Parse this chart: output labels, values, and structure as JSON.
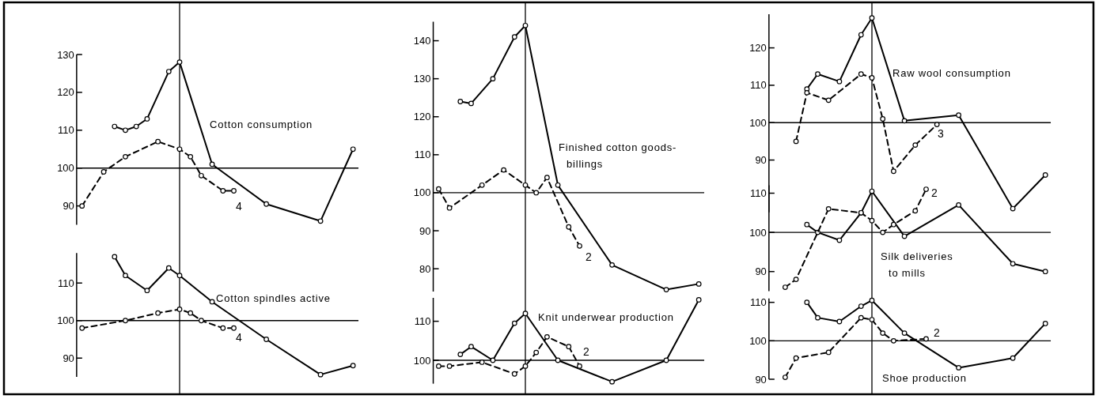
{
  "chart_data": [
    {
      "type": "line",
      "title": "Cotton consumption",
      "categories": [
        null,
        null,
        null,
        null,
        null,
        null,
        null,
        null,
        null,
        null,
        null,
        null,
        null,
        null,
        null,
        null,
        null,
        null,
        null,
        null,
        null,
        null,
        null,
        null,
        null,
        null
      ],
      "ylim": [
        85,
        130
      ],
      "yticks": [
        90,
        100,
        110,
        120,
        130
      ],
      "tick_labels": "y",
      "grid": false,
      "marker": "circle",
      "series": [
        {
          "color": "#000000",
          "line_style": "solid",
          "values": [
            null,
            null,
            null,
            111,
            110,
            111,
            113,
            null,
            125.5,
            128,
            null,
            null,
            101,
            null,
            null,
            null,
            null,
            90.5,
            null,
            null,
            null,
            null,
            86,
            null,
            null,
            105
          ]
        },
        {
          "color": "#000000",
          "line_style": "dashed",
          "values": [
            90,
            null,
            99,
            null,
            103,
            null,
            null,
            107,
            null,
            105,
            103,
            98,
            null,
            94,
            94,
            null,
            null,
            null,
            null,
            null,
            null,
            null,
            null,
            null,
            null,
            null
          ]
        }
      ],
      "ref_lines": [
        {
          "axis": "y",
          "value": 100
        }
      ],
      "annotations": [
        "4"
      ]
    },
    {
      "type": "line",
      "title": "Finished cotton goods-billings",
      "categories": [
        null,
        null,
        null,
        null,
        null,
        null,
        null,
        null,
        null,
        null,
        null,
        null,
        null,
        null,
        null,
        null,
        null,
        null,
        null,
        null,
        null,
        null,
        null,
        null,
        null
      ],
      "ylim": [
        74,
        145
      ],
      "yticks": [
        80,
        90,
        100,
        110,
        120,
        130,
        140
      ],
      "tick_labels": "y",
      "grid": false,
      "marker": "circle",
      "series": [
        {
          "color": "#000000",
          "line_style": "solid",
          "values": [
            null,
            null,
            124,
            123.5,
            null,
            130,
            null,
            141,
            144,
            null,
            null,
            102,
            null,
            null,
            null,
            null,
            81,
            null,
            null,
            null,
            null,
            74.5,
            null,
            null,
            76
          ]
        },
        {
          "color": "#000000",
          "line_style": "dashed",
          "values": [
            101,
            96,
            null,
            null,
            102,
            null,
            106,
            null,
            102,
            100,
            104,
            null,
            91,
            86,
            null,
            null,
            null,
            null,
            null,
            null,
            null,
            null,
            null,
            null,
            null
          ]
        }
      ],
      "ref_lines": [
        {
          "axis": "y",
          "value": 100
        }
      ],
      "annotations": [
        "2"
      ]
    },
    {
      "type": "line",
      "title": "Raw wool consumption",
      "categories": [
        null,
        null,
        null,
        null,
        null,
        null,
        null,
        null,
        null,
        null,
        null,
        null,
        null,
        null,
        null,
        null,
        null,
        null,
        null,
        null,
        null,
        null,
        null,
        null,
        null,
        null
      ],
      "ylim": [
        76,
        129
      ],
      "yticks": [
        90,
        100,
        110,
        120
      ],
      "tick_labels": "y",
      "grid": false,
      "marker": "circle",
      "series": [
        {
          "color": "#000000",
          "line_style": "solid",
          "values": [
            null,
            null,
            null,
            109,
            113,
            null,
            111,
            null,
            123.5,
            128,
            null,
            null,
            100.5,
            null,
            null,
            null,
            null,
            102,
            null,
            null,
            null,
            null,
            77,
            null,
            null,
            86
          ]
        },
        {
          "color": "#000000",
          "line_style": "dashed",
          "values": [
            null,
            null,
            95,
            108,
            null,
            106,
            null,
            null,
            113,
            112,
            101,
            87,
            null,
            94,
            null,
            99.5,
            null,
            null,
            null,
            null,
            null,
            null,
            null,
            null,
            null,
            null
          ]
        }
      ],
      "ref_lines": [
        {
          "axis": "y",
          "value": 100
        }
      ],
      "annotations": [
        "3"
      ]
    },
    {
      "type": "line",
      "title": "Cotton spindles active",
      "categories": [
        null,
        null,
        null,
        null,
        null,
        null,
        null,
        null,
        null,
        null,
        null,
        null,
        null,
        null,
        null,
        null,
        null,
        null,
        null,
        null,
        null,
        null,
        null,
        null,
        null,
        null
      ],
      "ylim": [
        85,
        118
      ],
      "yticks": [
        90,
        100,
        110
      ],
      "tick_labels": "y",
      "grid": false,
      "marker": "circle",
      "series": [
        {
          "color": "#000000",
          "line_style": "solid",
          "values": [
            null,
            null,
            null,
            117,
            112,
            null,
            108,
            null,
            114,
            112,
            null,
            null,
            105,
            null,
            null,
            null,
            null,
            95,
            null,
            null,
            null,
            null,
            85.6,
            null,
            null,
            88
          ]
        },
        {
          "color": "#000000",
          "line_style": "dashed",
          "values": [
            98,
            null,
            null,
            null,
            100,
            null,
            null,
            102,
            null,
            103,
            102,
            100,
            null,
            98,
            98,
            null,
            null,
            null,
            null,
            null,
            null,
            null,
            null,
            null,
            null,
            null
          ]
        }
      ],
      "ref_lines": [
        {
          "axis": "y",
          "value": 100
        }
      ],
      "annotations": [
        "4"
      ]
    },
    {
      "type": "line",
      "title": "Knit underwear production",
      "categories": [
        null,
        null,
        null,
        null,
        null,
        null,
        null,
        null,
        null,
        null,
        null,
        null,
        null,
        null,
        null,
        null,
        null,
        null,
        null,
        null,
        null,
        null,
        null,
        null,
        null
      ],
      "ylim": [
        94,
        116
      ],
      "yticks": [
        100,
        110
      ],
      "tick_labels": "y",
      "grid": false,
      "marker": "circle",
      "series": [
        {
          "color": "#000000",
          "line_style": "solid",
          "values": [
            null,
            null,
            101.5,
            103.5,
            null,
            100,
            null,
            109.5,
            112,
            null,
            null,
            100,
            null,
            null,
            null,
            null,
            94.5,
            null,
            null,
            null,
            null,
            100,
            null,
            null,
            115.5
          ]
        },
        {
          "color": "#000000",
          "line_style": "dashed",
          "values": [
            98.5,
            98.5,
            null,
            null,
            99.5,
            null,
            null,
            96.5,
            98.5,
            102,
            106,
            null,
            103.5,
            98.5,
            null,
            null,
            null,
            null,
            null,
            null,
            null,
            null,
            null,
            null,
            null
          ]
        }
      ],
      "ref_lines": [
        {
          "axis": "y",
          "value": 100
        }
      ],
      "annotations": [
        "2"
      ]
    },
    {
      "type": "line",
      "title": "Silk deliveries to mills",
      "categories": [
        null,
        null,
        null,
        null,
        null,
        null,
        null,
        null,
        null,
        null,
        null,
        null,
        null,
        null,
        null,
        null,
        null,
        null,
        null,
        null,
        null,
        null,
        null,
        null,
        null,
        null
      ],
      "ylim": [
        85,
        112
      ],
      "yticks": [
        90,
        100,
        110
      ],
      "tick_labels": "y",
      "grid": false,
      "marker": "circle",
      "series": [
        {
          "color": "#000000",
          "line_style": "solid",
          "values": [
            null,
            null,
            null,
            102,
            100,
            null,
            98,
            null,
            105,
            110.5,
            null,
            null,
            99,
            null,
            null,
            null,
            null,
            107,
            null,
            null,
            null,
            null,
            92,
            null,
            null,
            90
          ]
        },
        {
          "color": "#000000",
          "line_style": "dashed",
          "values": [
            null,
            86,
            88,
            null,
            null,
            106,
            null,
            null,
            105,
            103,
            100,
            102,
            null,
            105.5,
            111,
            null,
            null,
            null,
            null,
            null,
            null,
            null,
            null,
            null,
            null,
            null
          ]
        }
      ],
      "ref_lines": [
        {
          "axis": "y",
          "value": 100
        }
      ],
      "annotations": [
        "2"
      ]
    },
    {
      "type": "line",
      "title": "Shoe production",
      "categories": [
        null,
        null,
        null,
        null,
        null,
        null,
        null,
        null,
        null,
        null,
        null,
        null,
        null,
        null,
        null,
        null,
        null,
        null,
        null,
        null,
        null,
        null,
        null,
        null,
        null,
        null
      ],
      "ylim": [
        90,
        111
      ],
      "yticks": [
        90,
        100,
        110
      ],
      "tick_labels": "y",
      "grid": false,
      "marker": "circle",
      "series": [
        {
          "color": "#000000",
          "line_style": "solid",
          "values": [
            null,
            null,
            null,
            110,
            106,
            null,
            105,
            null,
            109,
            110.5,
            null,
            null,
            102,
            null,
            null,
            null,
            null,
            93,
            null,
            null,
            null,
            null,
            95.5,
            null,
            null,
            104.5
          ]
        },
        {
          "color": "#000000",
          "line_style": "dashed",
          "values": [
            null,
            90.5,
            95.5,
            null,
            null,
            97,
            null,
            null,
            106,
            105.5,
            102,
            100,
            null,
            null,
            100.5,
            null,
            null,
            null,
            null,
            null,
            null,
            null,
            null,
            null,
            null,
            null
          ]
        }
      ],
      "ref_lines": [
        {
          "axis": "y",
          "value": 100
        }
      ],
      "annotations": [
        "2"
      ]
    }
  ]
}
